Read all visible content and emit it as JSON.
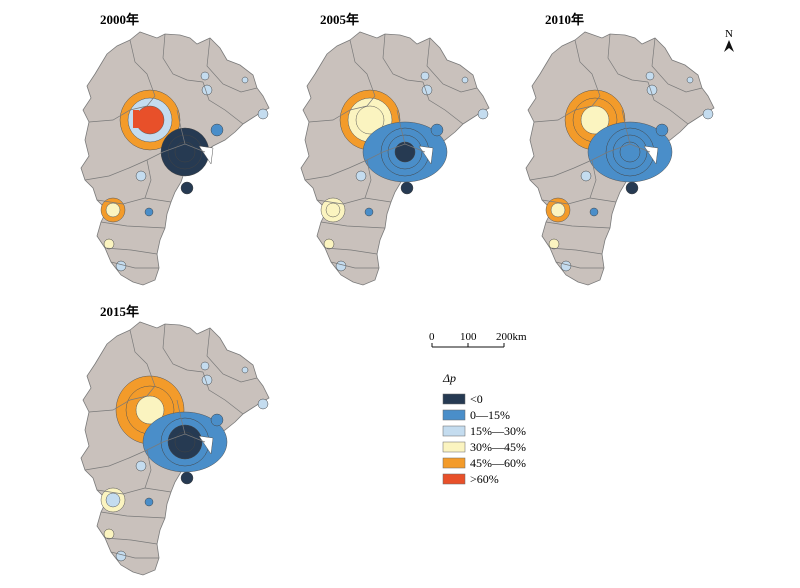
{
  "maps": [
    {
      "title": "2000年",
      "prefix": "map-2000"
    },
    {
      "title": "2005年",
      "prefix": "map-2005"
    },
    {
      "title": "2010年",
      "prefix": "map-2010"
    },
    {
      "title": "2015年",
      "prefix": "map-2015"
    }
  ],
  "north_arrow": {
    "label": "N"
  },
  "scale_bar": {
    "ticks": [
      "0",
      "100",
      "200km"
    ]
  },
  "legend": {
    "title": "Δp",
    "items": [
      {
        "label": "<0",
        "color": "#263a52"
      },
      {
        "label": "0—15%",
        "color": "#4a8ec9"
      },
      {
        "label": "15%—30%",
        "color": "#c4dcef"
      },
      {
        "label": "30%—45%",
        "color": "#fbf4c0"
      },
      {
        "label": "45%—60%",
        "color": "#f39b2a"
      },
      {
        "label": ">60%",
        "color": "#e8502a"
      }
    ]
  },
  "colors": {
    "land": "#c9c1bc",
    "boundary": "#7a7a7a"
  }
}
